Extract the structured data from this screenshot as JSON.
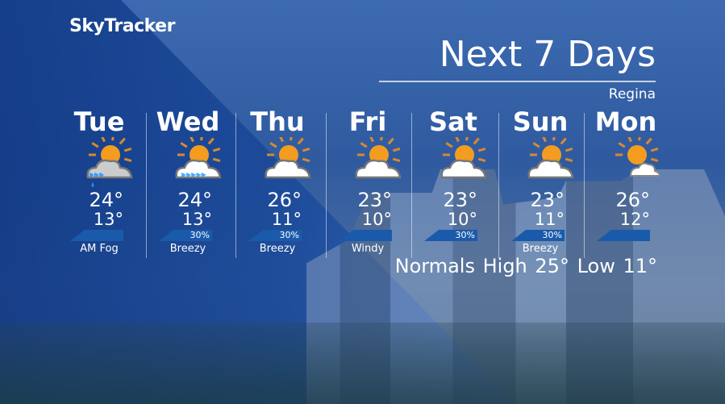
{
  "brand": "SkyTracker",
  "title": "Next 7 Days",
  "location": "Regina",
  "colors": {
    "sun": "#f39c1f",
    "ray": "#d58a30",
    "cloud": "#ffffff",
    "tag": "#1a5aaa"
  },
  "days": [
    {
      "day": "Tue",
      "icon": "fog-partly-sunny-icon",
      "high": "24°",
      "low": "13°",
      "pop": "",
      "condition": "AM Fog"
    },
    {
      "day": "Wed",
      "icon": "windy-partly-sunny-icon",
      "high": "24°",
      "low": "13°",
      "pop": "30%",
      "condition": "Breezy"
    },
    {
      "day": "Thu",
      "icon": "partly-sunny-icon",
      "high": "26°",
      "low": "11°",
      "pop": "30%",
      "condition": "Breezy"
    },
    {
      "day": "Fri",
      "icon": "partly-sunny-icon",
      "high": "23°",
      "low": "10°",
      "pop": "",
      "condition": "Windy"
    },
    {
      "day": "Sat",
      "icon": "partly-sunny-icon",
      "high": "23°",
      "low": "10°",
      "pop": "30%",
      "condition": ""
    },
    {
      "day": "Sun",
      "icon": "partly-sunny-icon",
      "high": "23°",
      "low": "11°",
      "pop": "30%",
      "condition": "Breezy"
    },
    {
      "day": "Mon",
      "icon": "mostly-sunny-icon",
      "high": "26°",
      "low": "12°",
      "pop": "",
      "condition": ""
    }
  ],
  "normals": "Normals  High 25°  Low 11°"
}
